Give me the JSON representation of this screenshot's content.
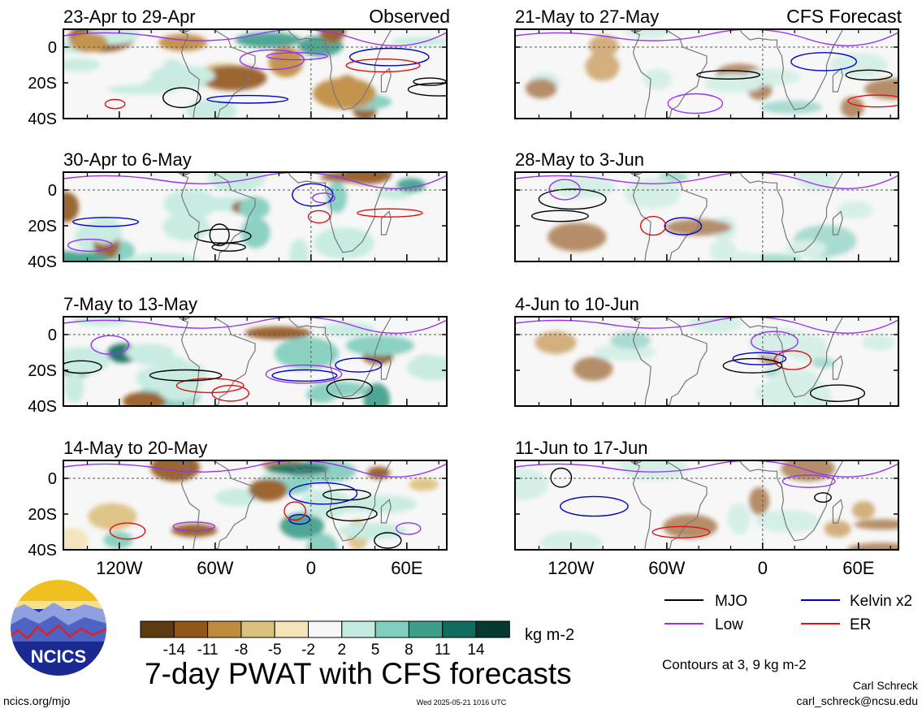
{
  "chart_data": {
    "type": "heatmap",
    "title": "7-day PWAT with CFS forecasts",
    "units": "kg m-2",
    "column_titles": [
      "Observed",
      "CFS Forecast"
    ],
    "panels": {
      "observed": [
        {
          "label": "23-Apr to 29-Apr"
        },
        {
          "label": "30-Apr to 6-May"
        },
        {
          "label": "7-May to 13-May"
        },
        {
          "label": "14-May to 20-May"
        }
      ],
      "forecast": [
        {
          "label": "21-May to 27-May"
        },
        {
          "label": "28-May to 3-Jun"
        },
        {
          "label": "4-Jun to 10-Jun"
        },
        {
          "label": "11-Jun to 17-Jun"
        }
      ]
    },
    "y_ticks": [
      "0",
      "20S",
      "40S"
    ],
    "y_values": [
      0,
      -20,
      -40
    ],
    "ylim": [
      -40,
      10
    ],
    "x_ticks": [
      "120W",
      "60W",
      "0",
      "60E"
    ],
    "x_values": [
      -120,
      -60,
      0,
      60
    ],
    "xlim": [
      -155,
      85
    ],
    "colorbar": {
      "labels": [
        "-14",
        "-11",
        "-8",
        "-5",
        "-2",
        "2",
        "5",
        "8",
        "11",
        "14"
      ],
      "values": [
        -14,
        -11,
        -8,
        -5,
        -2,
        2,
        5,
        8,
        11,
        14
      ],
      "colors": [
        "#5c3b10",
        "#93561a",
        "#bf8a3d",
        "#dcc07e",
        "#f5e4b8",
        "#f7f7f7",
        "#c4ebe0",
        "#80cdbd",
        "#3d9e8a",
        "#0f6d5e",
        "#063a31"
      ]
    },
    "legend": [
      {
        "label": "MJO",
        "color": "#000000"
      },
      {
        "label": "Kelvin x2",
        "color": "#0000cc"
      },
      {
        "label": "Low",
        "color": "#9933ee"
      },
      {
        "label": "ER",
        "color": "#dd1111"
      }
    ],
    "contour_note": "Contours at 3, 9 kg m-2"
  },
  "footer": {
    "logo_text": "NCICS",
    "url": "ncics.org/mjo",
    "timestamp": "Wed 2025-05-21 1016 UTC",
    "author": "Carl Schreck",
    "email": "carl_schreck@ncsu.edu"
  },
  "colors": {
    "land": "#777777",
    "frame": "#000000",
    "reference_lines": "#555555",
    "logo_blue": "#2233aa",
    "logo_sun": "#f0c020"
  }
}
